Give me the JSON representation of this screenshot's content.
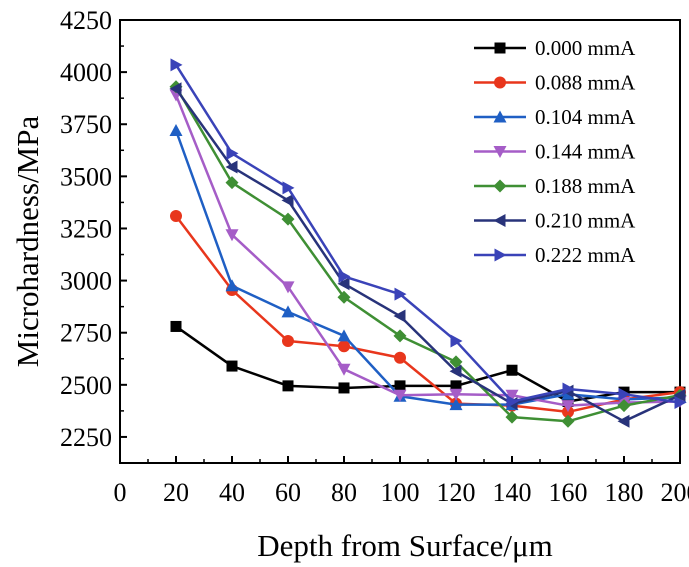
{
  "chart_data": {
    "type": "line",
    "title": "",
    "xlabel": "Depth from Surface/μm",
    "ylabel": "Microhardness/MPa",
    "xlim": [
      0,
      200
    ],
    "ylim": [
      2125,
      4250
    ],
    "xticks": [
      0,
      20,
      40,
      60,
      80,
      100,
      120,
      140,
      160,
      180,
      200
    ],
    "xtick_labels": [
      "0",
      "20",
      "40",
      "60",
      "80",
      "100",
      "120",
      "140",
      "160",
      "180",
      "200"
    ],
    "yticks": [
      2250,
      2500,
      2750,
      3000,
      3250,
      3500,
      3750,
      4000,
      4250
    ],
    "ytick_labels": [
      "2250",
      "2500",
      "2750",
      "3000",
      "3250",
      "3500",
      "3750",
      "4000",
      "4250"
    ],
    "grid": false,
    "legend_position": "top-right",
    "x": [
      20,
      40,
      60,
      80,
      100,
      120,
      140,
      160,
      180,
      200
    ],
    "series": [
      {
        "name": "0.000 mmA",
        "color": "#000000",
        "marker": "square",
        "values": [
          2780,
          2590,
          2495,
          2485,
          2495,
          2495,
          2570,
          2420,
          2465,
          2465
        ]
      },
      {
        "name": "0.088 mmA",
        "color": "#e8361c",
        "marker": "circle",
        "values": [
          3310,
          2955,
          2710,
          2685,
          2630,
          2410,
          2400,
          2370,
          2430,
          2465
        ]
      },
      {
        "name": "0.104 mmA",
        "color": "#1f5fc4",
        "marker": "triangle-up",
        "values": [
          3720,
          2975,
          2850,
          2735,
          2445,
          2405,
          2405,
          2455,
          2430,
          2440
        ]
      },
      {
        "name": "0.144 mmA",
        "color": "#a55dc7",
        "marker": "triangle-down",
        "values": [
          3890,
          3220,
          2970,
          2575,
          2450,
          2455,
          2450,
          2400,
          2415,
          2420
        ]
      },
      {
        "name": "0.188 mmA",
        "color": "#3f8f34",
        "marker": "diamond",
        "values": [
          3930,
          3470,
          3295,
          2920,
          2735,
          2610,
          2345,
          2325,
          2400,
          2450
        ]
      },
      {
        "name": "0.210 mmA",
        "color": "#28337a",
        "marker": "triangle-left",
        "values": [
          3920,
          3545,
          3385,
          2985,
          2830,
          2565,
          2410,
          2470,
          2325,
          2450
        ]
      },
      {
        "name": "0.222 mmA",
        "color": "#3a43b8",
        "marker": "triangle-right",
        "values": [
          4035,
          3610,
          3445,
          3020,
          2935,
          2710,
          2420,
          2480,
          2455,
          2415
        ]
      }
    ]
  }
}
